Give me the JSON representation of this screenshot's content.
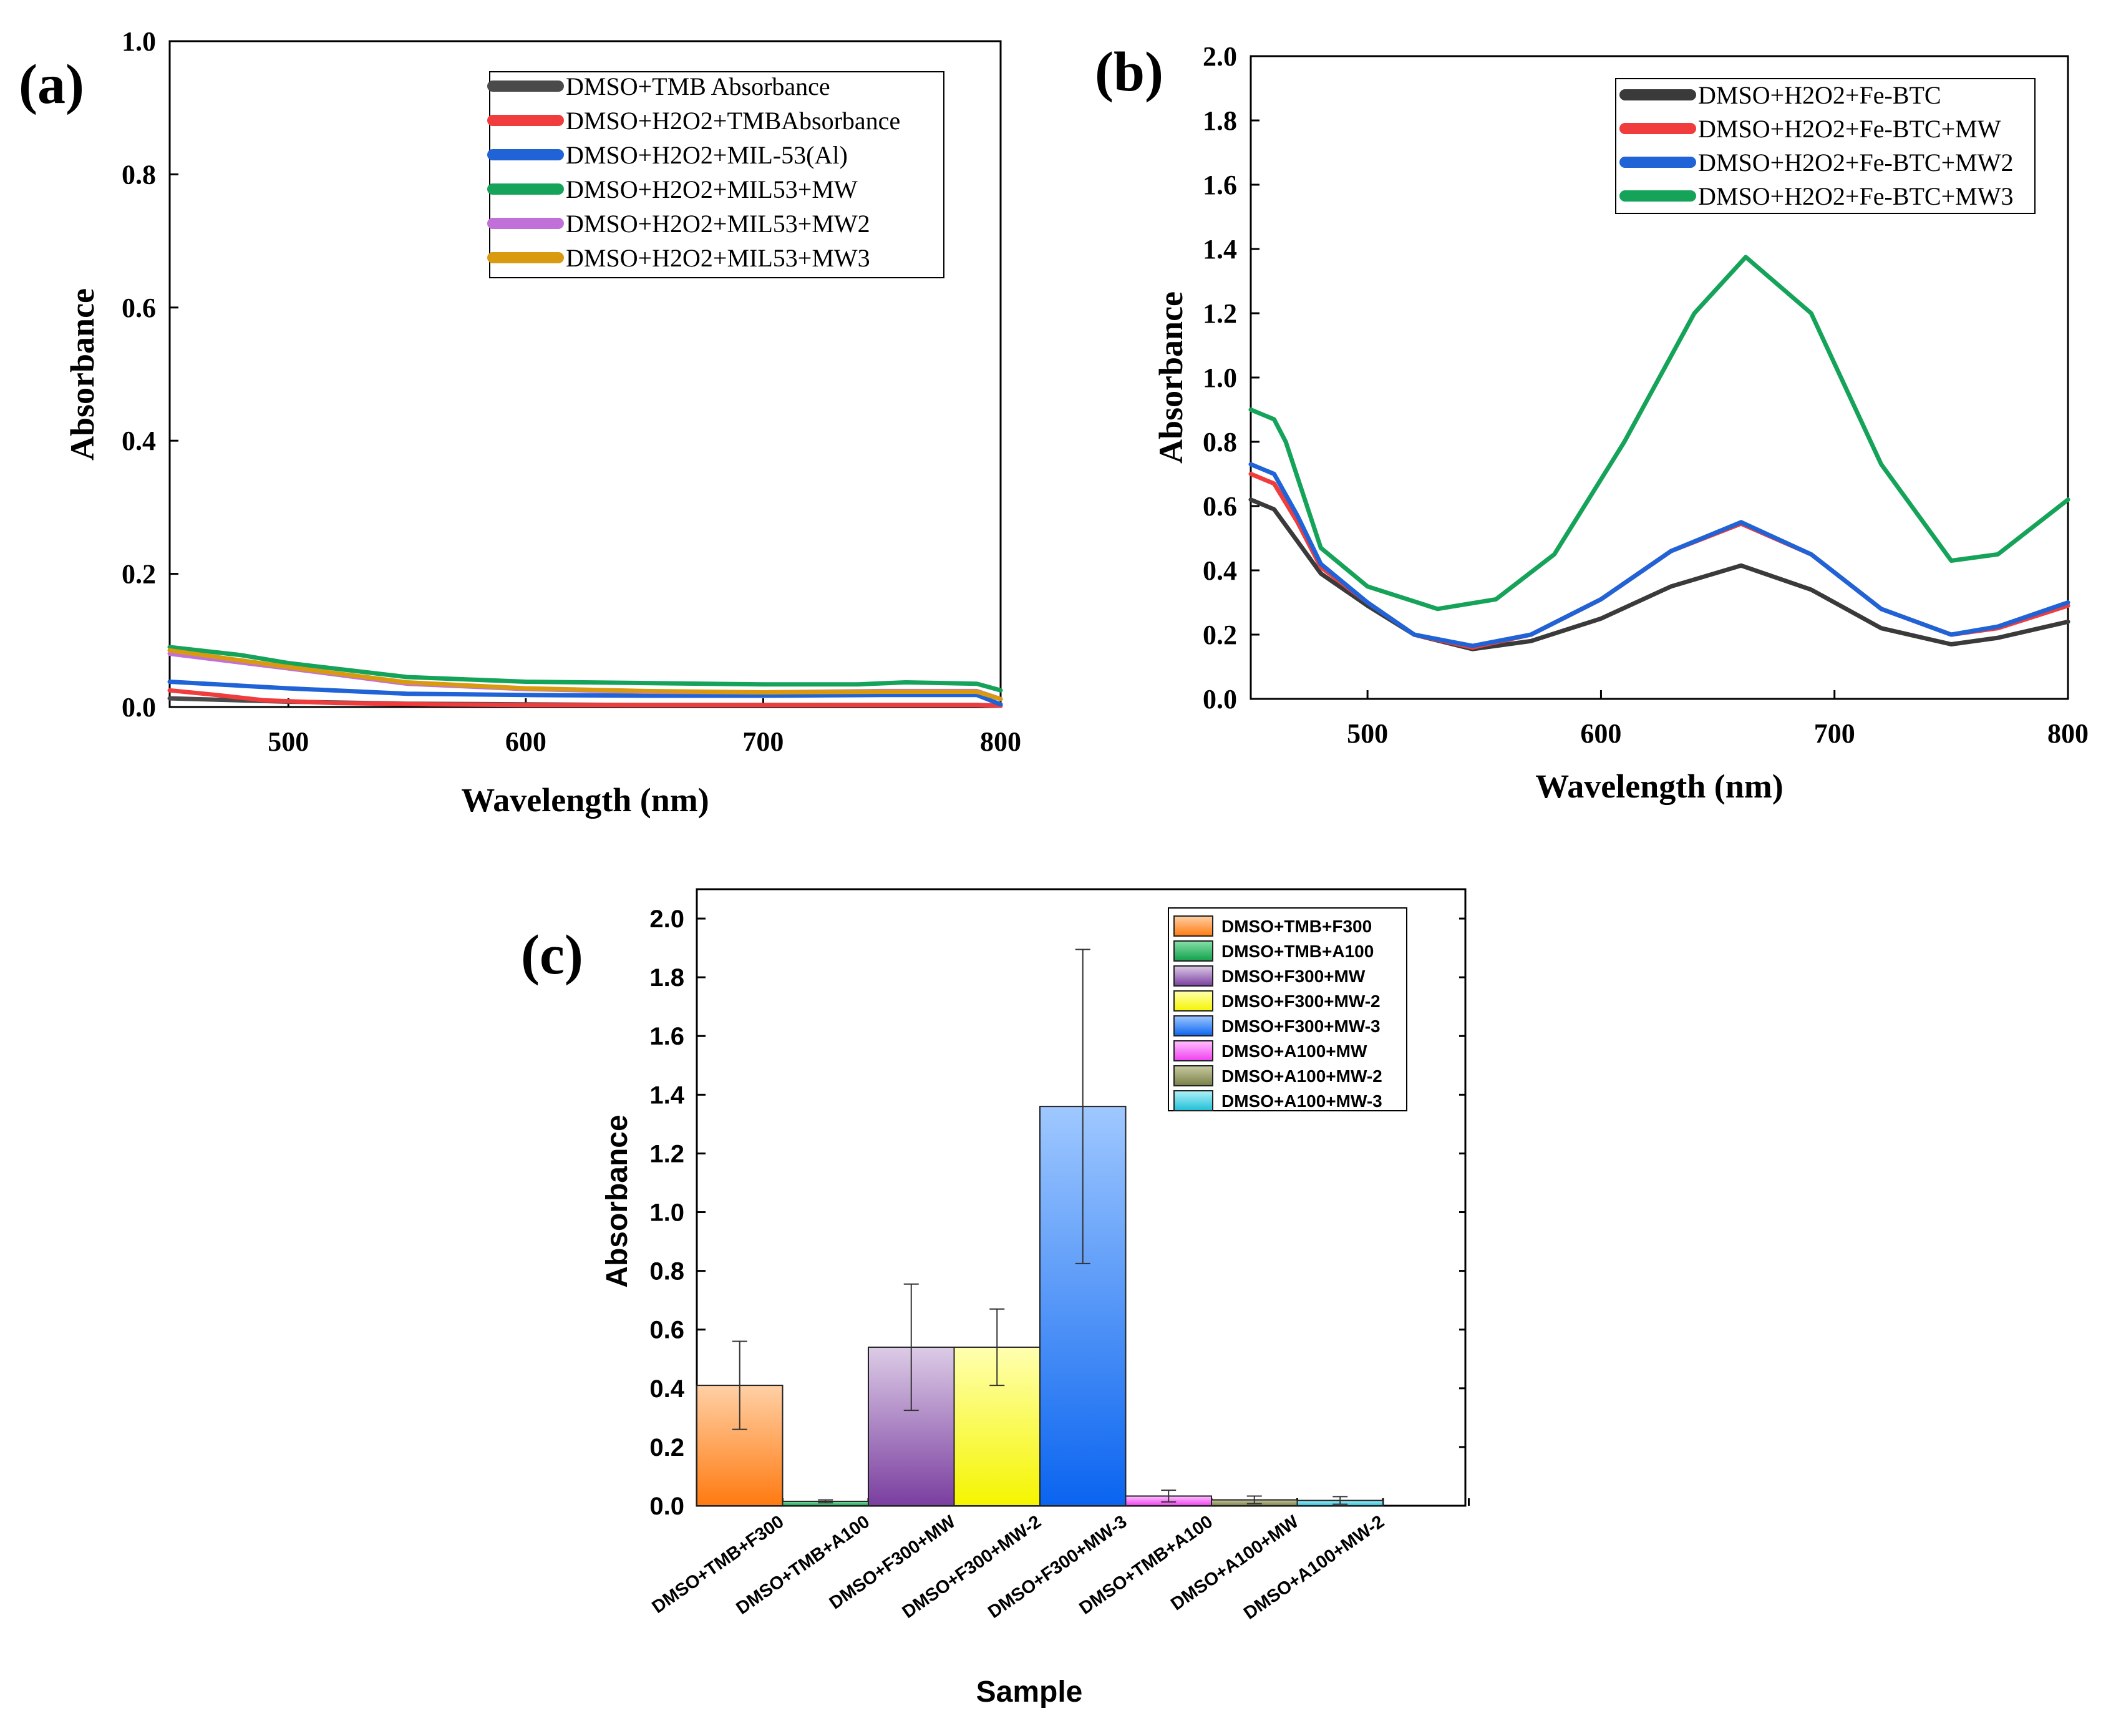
{
  "chart_data": [
    {
      "type": "line",
      "panel_label": "(a)",
      "xlabel": "Wavelength (nm)",
      "ylabel": "Absorbance",
      "xlim": [
        450,
        800
      ],
      "ylim": [
        0.0,
        1.0
      ],
      "xticks": [
        500,
        600,
        700,
        800
      ],
      "yticks": [
        "0.0",
        "0.2",
        "0.4",
        "0.6",
        "0.8",
        "1.0"
      ],
      "legend_position": "top-right",
      "series": [
        {
          "name": "DMSO+TMB Absorbance",
          "color": "#4a4a4a",
          "x": [
            450,
            500,
            550,
            600,
            650,
            700,
            750,
            790,
            800
          ],
          "y": [
            0.013,
            0.008,
            0.005,
            0.004,
            0.003,
            0.003,
            0.003,
            0.003,
            0.002
          ]
        },
        {
          "name": "DMSO+H2O2+TMBAbsorbance",
          "color": "#f03c3c",
          "x": [
            450,
            470,
            490,
            520,
            560,
            600,
            650,
            700,
            750,
            790,
            800
          ],
          "y": [
            0.025,
            0.018,
            0.01,
            0.006,
            0.004,
            0.003,
            0.003,
            0.003,
            0.003,
            0.003,
            0.002
          ]
        },
        {
          "name": "DMSO+H2O2+MIL-53(Al)",
          "color": "#1f63d6",
          "x": [
            450,
            500,
            550,
            600,
            650,
            700,
            750,
            790,
            800
          ],
          "y": [
            0.038,
            0.028,
            0.02,
            0.018,
            0.017,
            0.017,
            0.018,
            0.018,
            0.004
          ]
        },
        {
          "name": "DMSO+H2O2+MIL53+MW",
          "color": "#15a35a",
          "x": [
            450,
            480,
            500,
            550,
            600,
            650,
            700,
            740,
            760,
            790,
            800
          ],
          "y": [
            0.09,
            0.078,
            0.066,
            0.045,
            0.038,
            0.036,
            0.034,
            0.034,
            0.037,
            0.035,
            0.025
          ]
        },
        {
          "name": "DMSO+H2O2+MIL53+MW2",
          "color": "#c070d8",
          "x": [
            450,
            500,
            550,
            600,
            650,
            700,
            750,
            790,
            800
          ],
          "y": [
            0.08,
            0.058,
            0.035,
            0.027,
            0.023,
            0.022,
            0.024,
            0.024,
            0.012
          ]
        },
        {
          "name": "DMSO+H2O2+MIL53+MW3",
          "color": "#d99a10",
          "x": [
            450,
            500,
            550,
            600,
            650,
            700,
            750,
            790,
            800
          ],
          "y": [
            0.085,
            0.06,
            0.037,
            0.028,
            0.024,
            0.022,
            0.023,
            0.023,
            0.012
          ]
        }
      ]
    },
    {
      "type": "line",
      "panel_label": "(b)",
      "xlabel": "Wavelength (nm)",
      "ylabel": "Absorbance",
      "xlim": [
        450,
        800
      ],
      "ylim": [
        0.0,
        2.0
      ],
      "xticks": [
        500,
        600,
        700,
        800
      ],
      "yticks": [
        "0.0",
        "0.2",
        "0.4",
        "0.6",
        "0.8",
        "1.0",
        "1.2",
        "1.4",
        "1.6",
        "1.8",
        "2.0"
      ],
      "legend_position": "top-right",
      "series": [
        {
          "name": "DMSO+H2O2+Fe-BTC",
          "color": "#3a3a3a",
          "x": [
            450,
            460,
            470,
            480,
            500,
            520,
            545,
            570,
            600,
            630,
            660,
            690,
            720,
            750,
            770,
            800
          ],
          "y": [
            0.62,
            0.59,
            0.49,
            0.39,
            0.29,
            0.2,
            0.155,
            0.18,
            0.25,
            0.35,
            0.415,
            0.34,
            0.22,
            0.17,
            0.19,
            0.24
          ]
        },
        {
          "name": "DMSO+H2O2+Fe-BTC+MW",
          "color": "#f03c3c",
          "x": [
            450,
            460,
            470,
            480,
            500,
            520,
            545,
            570,
            600,
            630,
            660,
            690,
            720,
            750,
            770,
            800
          ],
          "y": [
            0.7,
            0.67,
            0.55,
            0.41,
            0.3,
            0.2,
            0.16,
            0.2,
            0.31,
            0.46,
            0.545,
            0.45,
            0.28,
            0.2,
            0.22,
            0.29
          ]
        },
        {
          "name": "DMSO+H2O2+Fe-BTC+MW2",
          "color": "#1f63d6",
          "x": [
            450,
            460,
            470,
            480,
            500,
            520,
            545,
            570,
            600,
            630,
            660,
            690,
            720,
            750,
            770,
            800
          ],
          "y": [
            0.73,
            0.7,
            0.57,
            0.42,
            0.3,
            0.2,
            0.165,
            0.2,
            0.31,
            0.46,
            0.55,
            0.45,
            0.28,
            0.2,
            0.225,
            0.3
          ]
        },
        {
          "name": "DMSO+H2O2+Fe-BTC+MW3",
          "color": "#15a35a",
          "x": [
            450,
            460,
            465,
            480,
            500,
            530,
            555,
            580,
            610,
            640,
            662,
            690,
            720,
            750,
            770,
            800
          ],
          "y": [
            0.9,
            0.87,
            0.8,
            0.47,
            0.35,
            0.28,
            0.31,
            0.45,
            0.8,
            1.2,
            1.375,
            1.2,
            0.73,
            0.43,
            0.45,
            0.62
          ]
        }
      ]
    },
    {
      "type": "bar",
      "panel_label": "(c)",
      "xlabel": "Sample",
      "ylabel": "Absorbance",
      "ylim": [
        0.0,
        2.1
      ],
      "yticks": [
        "0.0",
        "0.2",
        "0.4",
        "0.6",
        "0.8",
        "1.0",
        "1.2",
        "1.4",
        "1.6",
        "1.8",
        "2.0"
      ],
      "legend_position": "top-right",
      "categories": [
        "DMSO+TMB+F300",
        "DMSO+TMB+A100",
        "DMSO+F300+MW",
        "DMSO+F300+MW-2",
        "DMSO+F300+MW-3",
        "DMSO+TMB+A100",
        "DMSO+A100+MW",
        "DMSO+A100+MW-2"
      ],
      "legend": [
        "DMSO+TMB+F300",
        "DMSO+TMB+A100",
        "DMSO+F300+MW",
        "DMSO+F300+MW-2",
        "DMSO+F300+MW-3",
        "DMSO+A100+MW",
        "DMSO+A100+MW-2",
        "DMSO+A100+MW-3"
      ],
      "values": [
        0.41,
        0.015,
        0.54,
        0.54,
        1.36,
        0.033,
        0.02,
        0.018
      ],
      "errors": [
        0.15,
        0.005,
        0.215,
        0.13,
        0.535,
        0.02,
        0.013,
        0.013
      ],
      "colors": [
        {
          "top": "#ffd0a6",
          "bottom": "#ff7a10"
        },
        {
          "top": "#86e0a8",
          "bottom": "#10a04a"
        },
        {
          "top": "#dccbe6",
          "bottom": "#7a3ea0"
        },
        {
          "top": "#ffffb0",
          "bottom": "#f5f500"
        },
        {
          "top": "#9fc8ff",
          "bottom": "#0a64f0"
        },
        {
          "top": "#ffc0ff",
          "bottom": "#f040f0"
        },
        {
          "top": "#c8caa0",
          "bottom": "#7a7f48"
        },
        {
          "top": "#b0f0f8",
          "bottom": "#20c0d8"
        }
      ]
    }
  ]
}
